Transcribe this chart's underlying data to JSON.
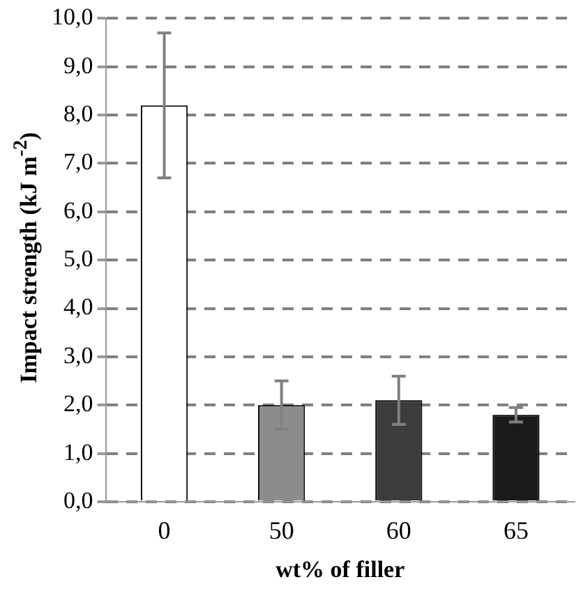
{
  "chart_data": {
    "type": "bar",
    "xlabel": "wt% of filler",
    "ylabel": "Impact strength (kJ m$^{-2}$)",
    "categories": [
      "0",
      "50",
      "60",
      "65"
    ],
    "values": [
      8.2,
      2.0,
      2.1,
      1.8
    ],
    "errors": [
      1.5,
      0.5,
      0.5,
      0.15
    ],
    "colors": [
      "#ffffff",
      "#8c8c8c",
      "#3c3c3c",
      "#1a1a1a"
    ],
    "ylim": [
      0,
      10
    ],
    "yticks": [
      {
        "value": 0,
        "label": "0,0"
      },
      {
        "value": 1,
        "label": "1,0"
      },
      {
        "value": 2,
        "label": "2,0"
      },
      {
        "value": 3,
        "label": "3,0"
      },
      {
        "value": 4,
        "label": "4,0"
      },
      {
        "value": 5,
        "label": "5,0"
      },
      {
        "value": 6,
        "label": "6,0"
      },
      {
        "value": 7,
        "label": "7,0"
      },
      {
        "value": 8,
        "label": "8,0"
      },
      {
        "value": 9,
        "label": "9,0"
      },
      {
        "value": 10,
        "label": "10,0"
      }
    ],
    "grid": "y"
  }
}
